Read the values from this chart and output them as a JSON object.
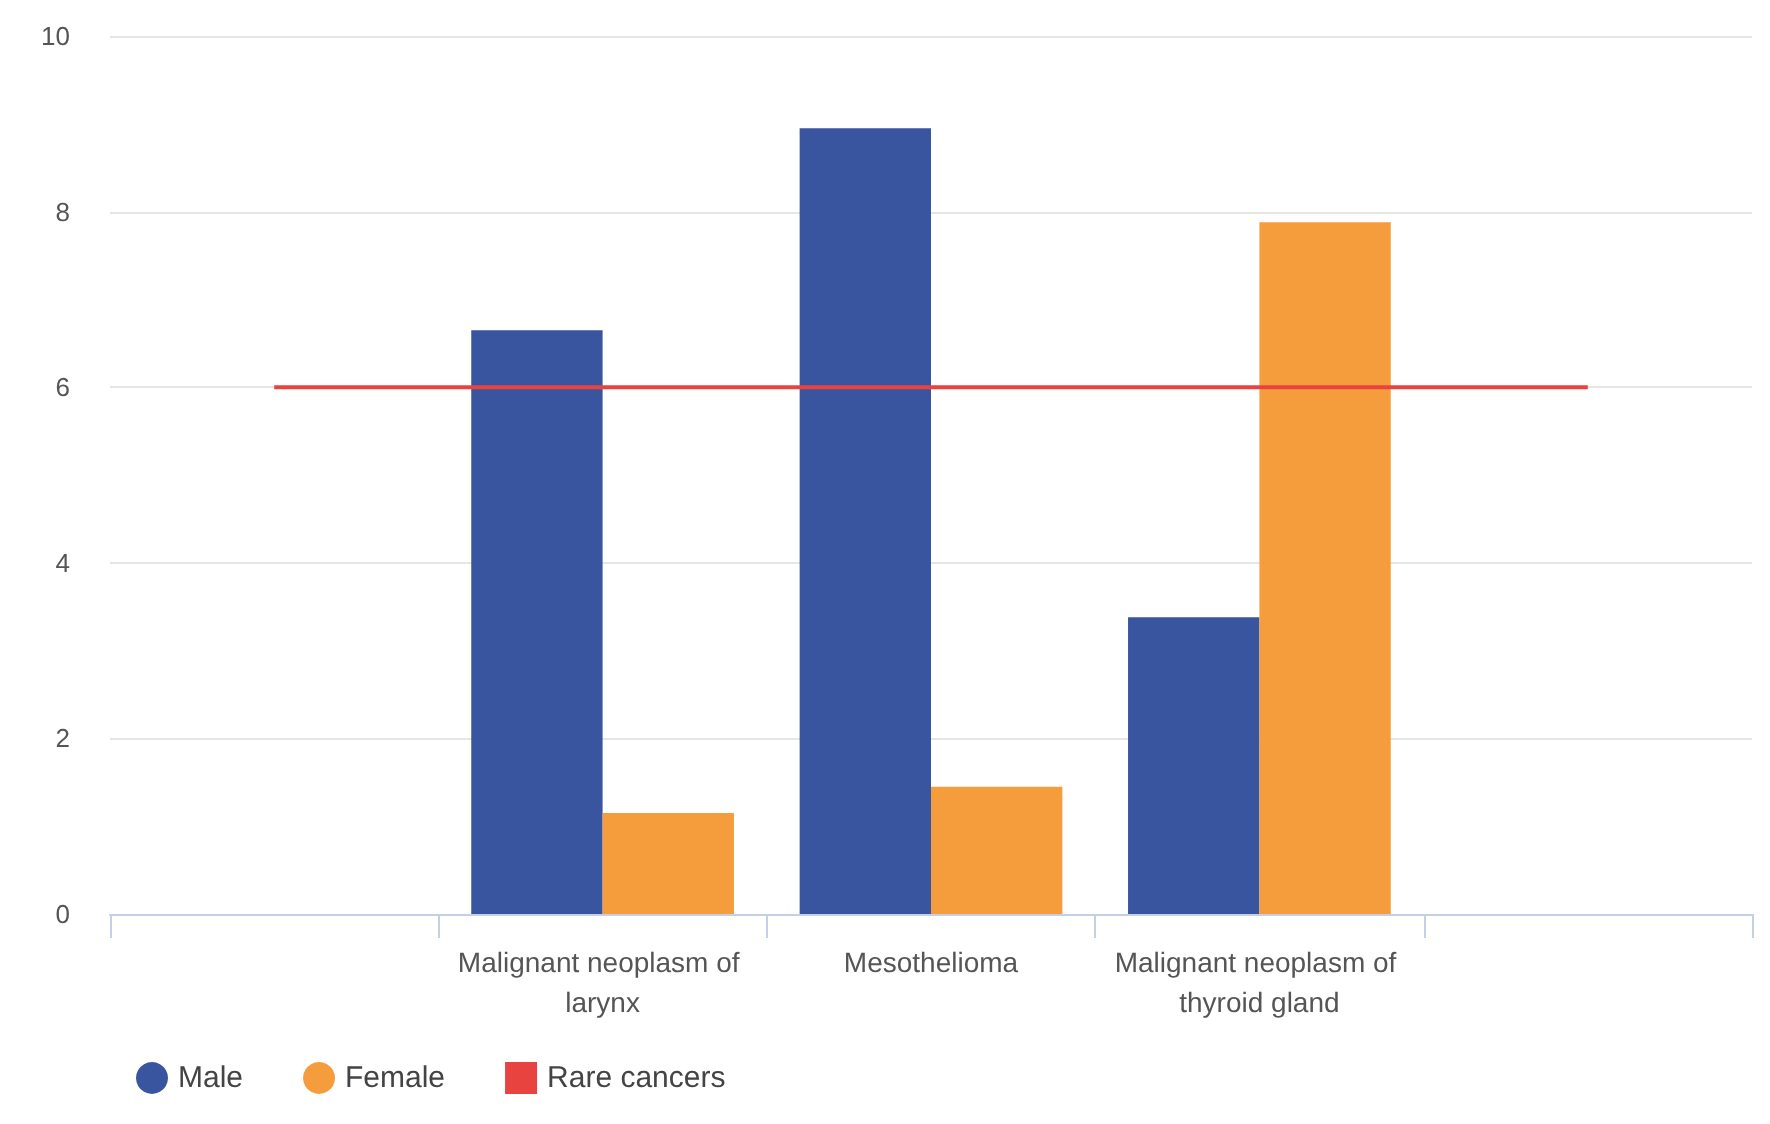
{
  "chart_data": {
    "type": "bar",
    "categories": [
      null,
      "Malignant neoplasm of larynx",
      "Mesothelioma",
      "Malignant neoplasm of thyroid gland",
      null
    ],
    "series": [
      {
        "name": "Male",
        "color": "#3a559f",
        "values": [
          null,
          6.65,
          8.95,
          3.38,
          null
        ]
      },
      {
        "name": "Female",
        "color": "#f59d3d",
        "values": [
          null,
          1.15,
          1.45,
          7.88,
          null
        ]
      },
      {
        "name": "Rare cancers",
        "type": "line",
        "color": "#e8433f",
        "values": [
          6,
          6,
          6,
          6,
          6
        ]
      }
    ],
    "ylim": [
      0,
      10
    ],
    "yticks": [
      0,
      2,
      4,
      6,
      8,
      10
    ],
    "grid": "y",
    "legend": "bottom left",
    "marker": "none"
  }
}
